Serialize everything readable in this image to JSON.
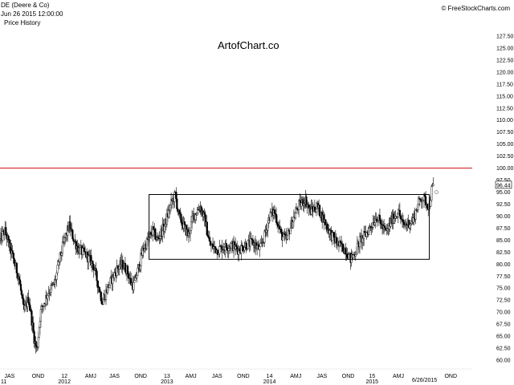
{
  "header": {
    "symbol": "DE (Deere & Co)",
    "datetime": "Jun 26 2015 12:00:00",
    "panel_label": "Price History",
    "brand": "© FreeStockCharts.com"
  },
  "watermark": "ArtofChart.co",
  "colors": {
    "candle": "#000000",
    "resistance": "#d62728",
    "box": "#000000",
    "background": "#ffffff"
  },
  "chart_data": {
    "type": "candlestick",
    "yticks": [
      60.0,
      62.5,
      65.0,
      67.5,
      70.0,
      72.5,
      75.0,
      77.5,
      80.0,
      82.5,
      85.0,
      87.5,
      90.0,
      92.5,
      95.0,
      97.5,
      100.0,
      102.5,
      105.0,
      107.5,
      110.0,
      112.5,
      115.0,
      117.5,
      120.0,
      122.5,
      125.0,
      127.5
    ],
    "ytick_labels": [
      "60.00",
      "62.50",
      "65.00",
      "67.50",
      "70.00",
      "72.50",
      "75.00",
      "77.50",
      "80.00",
      "82.50",
      "85.00",
      "87.50",
      "90.00",
      "92.50",
      "95.00",
      "97.50",
      "100.00",
      "102.50",
      "105.00",
      "107.50",
      "110.00",
      "112.50",
      "115.00",
      "117.50",
      "120.00",
      "122.50",
      "125.00",
      "127.50"
    ],
    "ylim": [
      58.5,
      130.0
    ],
    "xlim": [
      0.0,
      19.8
    ],
    "x_ticks": [
      {
        "x": 0.4,
        "label": "JAS"
      },
      {
        "x": 1.6,
        "label": "OND"
      },
      {
        "x": 2.7,
        "label": "12"
      },
      {
        "x": 3.8,
        "label": "AMJ"
      },
      {
        "x": 4.8,
        "label": "JAS"
      },
      {
        "x": 5.9,
        "label": "OND"
      },
      {
        "x": 7.0,
        "label": "13"
      },
      {
        "x": 8.0,
        "label": "AMJ"
      },
      {
        "x": 9.1,
        "label": "JAS"
      },
      {
        "x": 10.2,
        "label": "OND"
      },
      {
        "x": 11.3,
        "label": "14"
      },
      {
        "x": 12.4,
        "label": "AMJ"
      },
      {
        "x": 13.5,
        "label": "JAS"
      },
      {
        "x": 14.6,
        "label": "OND"
      },
      {
        "x": 15.6,
        "label": "15"
      },
      {
        "x": 16.7,
        "label": "AMJ"
      },
      {
        "x": 18.9,
        "label": "OND"
      }
    ],
    "year_labels": [
      {
        "x": 0.0,
        "label": "11"
      },
      {
        "x": 2.7,
        "label": "2012"
      },
      {
        "x": 7.0,
        "label": "2013"
      },
      {
        "x": 11.3,
        "label": "2014"
      },
      {
        "x": 15.6,
        "label": "2015"
      }
    ],
    "date_marker": {
      "x": 17.8,
      "label": "6/26/2015"
    },
    "last_price": {
      "value": 96.44,
      "label": "96.44"
    },
    "resistance_level": 100.0,
    "range_box": {
      "x0": 6.25,
      "x1": 18.0,
      "y_low": 81.0,
      "y_high": 94.5
    },
    "price_path": [
      [
        0.0,
        85.0
      ],
      [
        0.2,
        87.0
      ],
      [
        0.5,
        82.0
      ],
      [
        0.8,
        77.0
      ],
      [
        1.0,
        70.0
      ],
      [
        1.2,
        73.0
      ],
      [
        1.45,
        64.0
      ],
      [
        1.55,
        62.0
      ],
      [
        1.7,
        70.0
      ],
      [
        2.0,
        74.0
      ],
      [
        2.3,
        76.0
      ],
      [
        2.5,
        81.0
      ],
      [
        2.7,
        85.0
      ],
      [
        2.9,
        88.0
      ],
      [
        3.1,
        85.0
      ],
      [
        3.3,
        83.0
      ],
      [
        3.6,
        82.0
      ],
      [
        3.9,
        80.0
      ],
      [
        4.1,
        76.0
      ],
      [
        4.3,
        72.0
      ],
      [
        4.5,
        75.0
      ],
      [
        4.7,
        77.0
      ],
      [
        4.9,
        79.0
      ],
      [
        5.1,
        80.0
      ],
      [
        5.3,
        79.0
      ],
      [
        5.5,
        76.0
      ],
      [
        5.6,
        75.5
      ],
      [
        5.8,
        79.0
      ],
      [
        6.0,
        83.0
      ],
      [
        6.2,
        85.0
      ],
      [
        6.4,
        87.0
      ],
      [
        6.6,
        85.0
      ],
      [
        6.9,
        88.0
      ],
      [
        7.2,
        93.0
      ],
      [
        7.35,
        94.5
      ],
      [
        7.5,
        90.0
      ],
      [
        7.7,
        88.0
      ],
      [
        7.9,
        86.0
      ],
      [
        8.1,
        90.0
      ],
      [
        8.4,
        92.0
      ],
      [
        8.6,
        89.0
      ],
      [
        8.8,
        84.0
      ],
      [
        9.1,
        83.0
      ],
      [
        9.4,
        83.5
      ],
      [
        9.7,
        84.0
      ],
      [
        10.0,
        83.0
      ],
      [
        10.3,
        84.0
      ],
      [
        10.6,
        84.5
      ],
      [
        10.9,
        83.0
      ],
      [
        11.1,
        86.0
      ],
      [
        11.3,
        90.0
      ],
      [
        11.5,
        91.0
      ],
      [
        11.8,
        86.0
      ],
      [
        12.0,
        85.0
      ],
      [
        12.2,
        88.0
      ],
      [
        12.5,
        92.0
      ],
      [
        12.8,
        93.5
      ],
      [
        13.0,
        91.0
      ],
      [
        13.3,
        92.0
      ],
      [
        13.6,
        89.0
      ],
      [
        13.9,
        86.0
      ],
      [
        14.2,
        84.0
      ],
      [
        14.5,
        83.0
      ],
      [
        14.7,
        81.0
      ],
      [
        14.9,
        82.5
      ],
      [
        15.1,
        85.0
      ],
      [
        15.3,
        86.0
      ],
      [
        15.5,
        87.5
      ],
      [
        15.8,
        90.0
      ],
      [
        16.0,
        88.0
      ],
      [
        16.2,
        86.5
      ],
      [
        16.4,
        89.0
      ],
      [
        16.7,
        91.0
      ],
      [
        16.9,
        88.0
      ],
      [
        17.1,
        88.5
      ],
      [
        17.3,
        89.0
      ],
      [
        17.5,
        92.0
      ],
      [
        17.7,
        94.0
      ],
      [
        17.85,
        93.0
      ],
      [
        18.0,
        92.0
      ],
      [
        18.1,
        95.5
      ],
      [
        18.2,
        96.4
      ]
    ]
  }
}
